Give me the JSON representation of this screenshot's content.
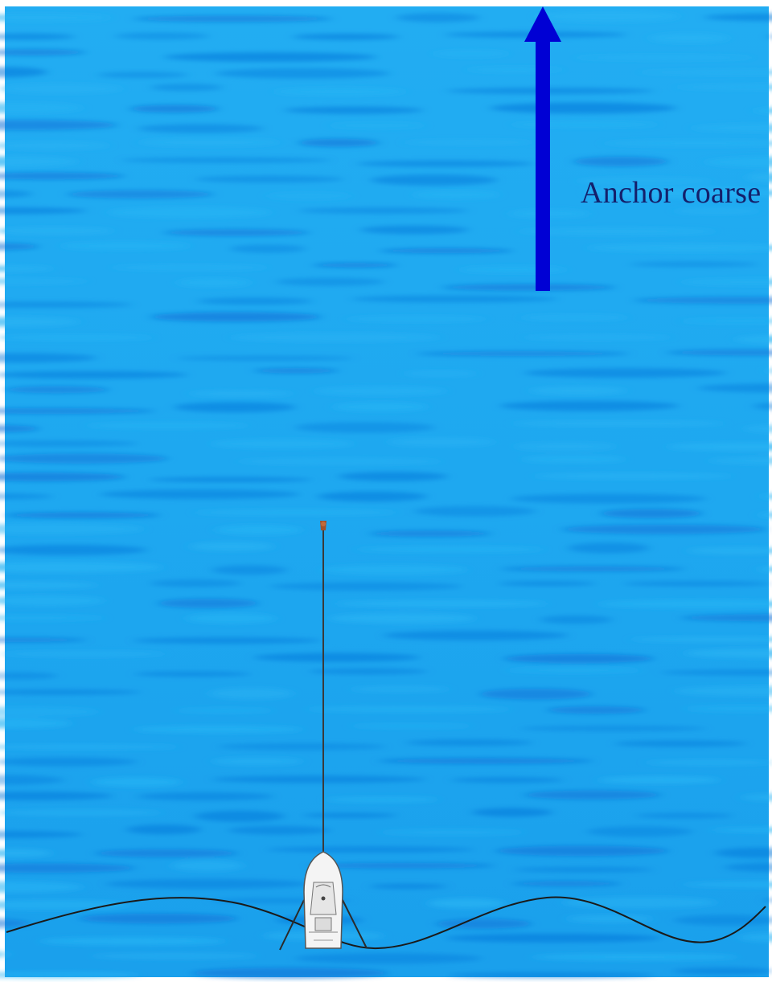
{
  "diagram": {
    "course_label": "Anchor coarse",
    "colors": {
      "water_light": "#27b4f4",
      "water_mid": "#1aa2ee",
      "water_dark": "#0c74d8",
      "arrow": "#0000d4",
      "label": "#14206b",
      "rode": "#3a3a3a",
      "anchor_marker": "#a0522d",
      "boat_hull": "#f4f4f4",
      "boat_outline": "#555555",
      "wake_line": "#1a1a1a"
    },
    "icons": {
      "arrow": "course-arrow-icon",
      "anchor": "anchor-marker-icon",
      "boat": "boat-icon"
    }
  }
}
